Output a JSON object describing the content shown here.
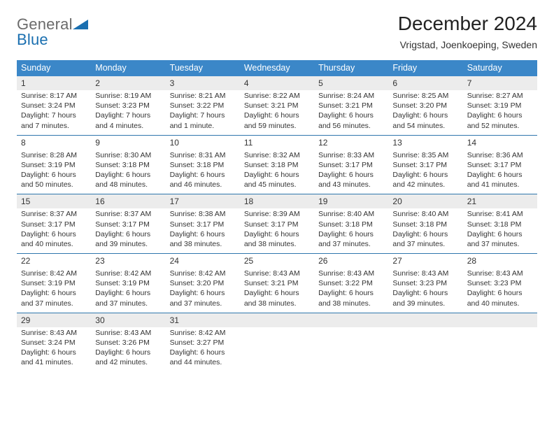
{
  "brand": {
    "part1": "General",
    "part2": "Blue"
  },
  "header": {
    "month_title": "December 2024",
    "location": "Vrigstad, Joenkoeping, Sweden"
  },
  "colors": {
    "header_blue": "#3b87c8",
    "alt_grey": "#ececec",
    "divider": "#2f77ad",
    "logo_grey": "#6b6b6b",
    "logo_blue": "#1a6fb0"
  },
  "weekdays": [
    "Sunday",
    "Monday",
    "Tuesday",
    "Wednesday",
    "Thursday",
    "Friday",
    "Saturday"
  ],
  "weeks": [
    {
      "alt": true,
      "days": [
        {
          "n": "1",
          "sunrise": "Sunrise: 8:17 AM",
          "sunset": "Sunset: 3:24 PM",
          "daylight": "Daylight: 7 hours and 7 minutes."
        },
        {
          "n": "2",
          "sunrise": "Sunrise: 8:19 AM",
          "sunset": "Sunset: 3:23 PM",
          "daylight": "Daylight: 7 hours and 4 minutes."
        },
        {
          "n": "3",
          "sunrise": "Sunrise: 8:21 AM",
          "sunset": "Sunset: 3:22 PM",
          "daylight": "Daylight: 7 hours and 1 minute."
        },
        {
          "n": "4",
          "sunrise": "Sunrise: 8:22 AM",
          "sunset": "Sunset: 3:21 PM",
          "daylight": "Daylight: 6 hours and 59 minutes."
        },
        {
          "n": "5",
          "sunrise": "Sunrise: 8:24 AM",
          "sunset": "Sunset: 3:21 PM",
          "daylight": "Daylight: 6 hours and 56 minutes."
        },
        {
          "n": "6",
          "sunrise": "Sunrise: 8:25 AM",
          "sunset": "Sunset: 3:20 PM",
          "daylight": "Daylight: 6 hours and 54 minutes."
        },
        {
          "n": "7",
          "sunrise": "Sunrise: 8:27 AM",
          "sunset": "Sunset: 3:19 PM",
          "daylight": "Daylight: 6 hours and 52 minutes."
        }
      ]
    },
    {
      "alt": false,
      "days": [
        {
          "n": "8",
          "sunrise": "Sunrise: 8:28 AM",
          "sunset": "Sunset: 3:19 PM",
          "daylight": "Daylight: 6 hours and 50 minutes."
        },
        {
          "n": "9",
          "sunrise": "Sunrise: 8:30 AM",
          "sunset": "Sunset: 3:18 PM",
          "daylight": "Daylight: 6 hours and 48 minutes."
        },
        {
          "n": "10",
          "sunrise": "Sunrise: 8:31 AM",
          "sunset": "Sunset: 3:18 PM",
          "daylight": "Daylight: 6 hours and 46 minutes."
        },
        {
          "n": "11",
          "sunrise": "Sunrise: 8:32 AM",
          "sunset": "Sunset: 3:18 PM",
          "daylight": "Daylight: 6 hours and 45 minutes."
        },
        {
          "n": "12",
          "sunrise": "Sunrise: 8:33 AM",
          "sunset": "Sunset: 3:17 PM",
          "daylight": "Daylight: 6 hours and 43 minutes."
        },
        {
          "n": "13",
          "sunrise": "Sunrise: 8:35 AM",
          "sunset": "Sunset: 3:17 PM",
          "daylight": "Daylight: 6 hours and 42 minutes."
        },
        {
          "n": "14",
          "sunrise": "Sunrise: 8:36 AM",
          "sunset": "Sunset: 3:17 PM",
          "daylight": "Daylight: 6 hours and 41 minutes."
        }
      ]
    },
    {
      "alt": true,
      "days": [
        {
          "n": "15",
          "sunrise": "Sunrise: 8:37 AM",
          "sunset": "Sunset: 3:17 PM",
          "daylight": "Daylight: 6 hours and 40 minutes."
        },
        {
          "n": "16",
          "sunrise": "Sunrise: 8:37 AM",
          "sunset": "Sunset: 3:17 PM",
          "daylight": "Daylight: 6 hours and 39 minutes."
        },
        {
          "n": "17",
          "sunrise": "Sunrise: 8:38 AM",
          "sunset": "Sunset: 3:17 PM",
          "daylight": "Daylight: 6 hours and 38 minutes."
        },
        {
          "n": "18",
          "sunrise": "Sunrise: 8:39 AM",
          "sunset": "Sunset: 3:17 PM",
          "daylight": "Daylight: 6 hours and 38 minutes."
        },
        {
          "n": "19",
          "sunrise": "Sunrise: 8:40 AM",
          "sunset": "Sunset: 3:18 PM",
          "daylight": "Daylight: 6 hours and 37 minutes."
        },
        {
          "n": "20",
          "sunrise": "Sunrise: 8:40 AM",
          "sunset": "Sunset: 3:18 PM",
          "daylight": "Daylight: 6 hours and 37 minutes."
        },
        {
          "n": "21",
          "sunrise": "Sunrise: 8:41 AM",
          "sunset": "Sunset: 3:18 PM",
          "daylight": "Daylight: 6 hours and 37 minutes."
        }
      ]
    },
    {
      "alt": false,
      "days": [
        {
          "n": "22",
          "sunrise": "Sunrise: 8:42 AM",
          "sunset": "Sunset: 3:19 PM",
          "daylight": "Daylight: 6 hours and 37 minutes."
        },
        {
          "n": "23",
          "sunrise": "Sunrise: 8:42 AM",
          "sunset": "Sunset: 3:19 PM",
          "daylight": "Daylight: 6 hours and 37 minutes."
        },
        {
          "n": "24",
          "sunrise": "Sunrise: 8:42 AM",
          "sunset": "Sunset: 3:20 PM",
          "daylight": "Daylight: 6 hours and 37 minutes."
        },
        {
          "n": "25",
          "sunrise": "Sunrise: 8:43 AM",
          "sunset": "Sunset: 3:21 PM",
          "daylight": "Daylight: 6 hours and 38 minutes."
        },
        {
          "n": "26",
          "sunrise": "Sunrise: 8:43 AM",
          "sunset": "Sunset: 3:22 PM",
          "daylight": "Daylight: 6 hours and 38 minutes."
        },
        {
          "n": "27",
          "sunrise": "Sunrise: 8:43 AM",
          "sunset": "Sunset: 3:23 PM",
          "daylight": "Daylight: 6 hours and 39 minutes."
        },
        {
          "n": "28",
          "sunrise": "Sunrise: 8:43 AM",
          "sunset": "Sunset: 3:23 PM",
          "daylight": "Daylight: 6 hours and 40 minutes."
        }
      ]
    },
    {
      "alt": true,
      "days": [
        {
          "n": "29",
          "sunrise": "Sunrise: 8:43 AM",
          "sunset": "Sunset: 3:24 PM",
          "daylight": "Daylight: 6 hours and 41 minutes."
        },
        {
          "n": "30",
          "sunrise": "Sunrise: 8:43 AM",
          "sunset": "Sunset: 3:26 PM",
          "daylight": "Daylight: 6 hours and 42 minutes."
        },
        {
          "n": "31",
          "sunrise": "Sunrise: 8:42 AM",
          "sunset": "Sunset: 3:27 PM",
          "daylight": "Daylight: 6 hours and 44 minutes."
        },
        null,
        null,
        null,
        null
      ]
    }
  ]
}
